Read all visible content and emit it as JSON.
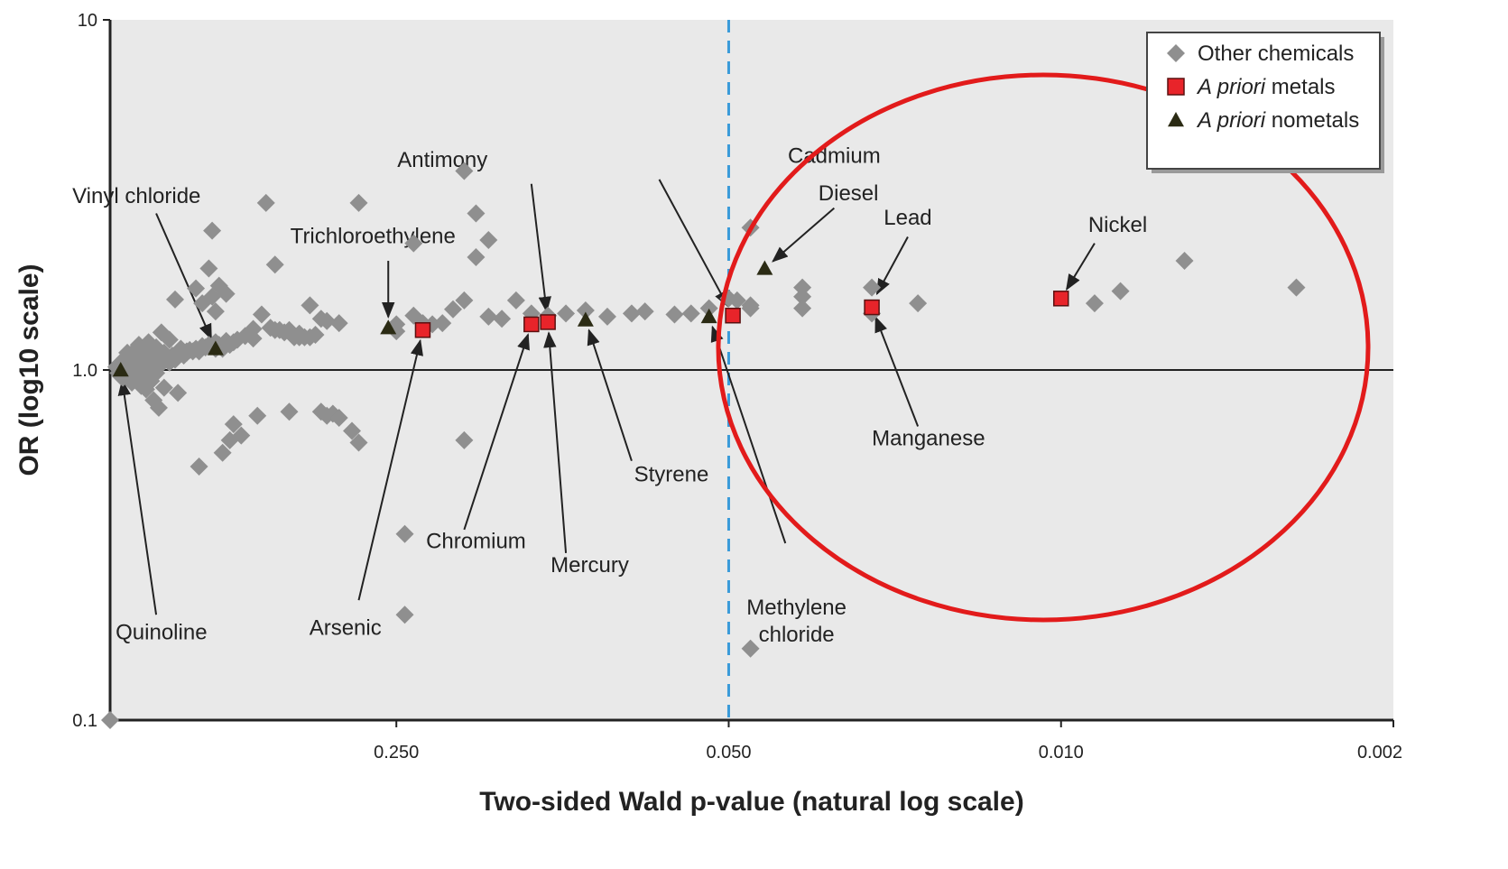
{
  "chart_data": {
    "type": "scatter",
    "title": "",
    "xlabel": "Two-sided Wald p-value (natural log scale)",
    "ylabel": "OR (log10 scale)",
    "x_scale": "reversed-natural-log",
    "y_scale": "log10",
    "xlim": [
      1.0,
      0.002
    ],
    "ylim": [
      0.1,
      10
    ],
    "x_ticks": [
      {
        "value": 0.25,
        "label": "0.250"
      },
      {
        "value": 0.05,
        "label": "0.050"
      },
      {
        "value": 0.01,
        "label": "0.010"
      },
      {
        "value": 0.002,
        "label": "0.002"
      }
    ],
    "y_ticks": [
      {
        "value": 0.1,
        "label": "0.1"
      },
      {
        "value": 1.0,
        "label": "1.0"
      },
      {
        "value": 10,
        "label": "10"
      }
    ],
    "reference_lines": {
      "y": 1.0,
      "x": 0.05
    },
    "colors": {
      "panel": "#e9e9e9",
      "other": "#8f8f8f",
      "metal": "#e8242a",
      "nonmetal": "#2b2b14",
      "significance_line": "#3a9bd9",
      "highlight_ellipse": "#e21b1b"
    },
    "legend": {
      "position": "top-right",
      "entries": [
        {
          "series": "other",
          "label_parts": [
            {
              "text": "Other chemicals",
              "italic": false
            }
          ]
        },
        {
          "series": "metal",
          "label_parts": [
            {
              "text": "A priori",
              "italic": true
            },
            {
              "text": " metals",
              "italic": false
            }
          ]
        },
        {
          "series": "nonmetal",
          "label_parts": [
            {
              "text": "A priori",
              "italic": true
            },
            {
              "text": " nometals",
              "italic": false
            }
          ]
        }
      ]
    },
    "series": [
      {
        "name": "Other chemicals",
        "key": "other",
        "marker": "diamond",
        "points": [
          [
            1.0,
            0.1
          ],
          [
            0.97,
            1.02
          ],
          [
            0.96,
            0.98
          ],
          [
            0.95,
            1.05
          ],
          [
            0.95,
            0.96
          ],
          [
            0.94,
            1.03
          ],
          [
            0.94,
            0.95
          ],
          [
            0.93,
            1.08
          ],
          [
            0.93,
            1.0
          ],
          [
            0.92,
            0.97
          ],
          [
            0.92,
            1.12
          ],
          [
            0.91,
            1.04
          ],
          [
            0.91,
            0.94
          ],
          [
            0.9,
            1.06
          ],
          [
            0.9,
            0.92
          ],
          [
            0.89,
            1.1
          ],
          [
            0.89,
            0.99
          ],
          [
            0.88,
            1.15
          ],
          [
            0.88,
            0.96
          ],
          [
            0.87,
            1.02
          ],
          [
            0.87,
            1.18
          ],
          [
            0.86,
            0.9
          ],
          [
            0.86,
            1.07
          ],
          [
            0.85,
            0.97
          ],
          [
            0.85,
            1.13
          ],
          [
            0.84,
            1.0
          ],
          [
            0.84,
            0.88
          ],
          [
            0.83,
            1.2
          ],
          [
            0.83,
            1.05
          ],
          [
            0.82,
            0.93
          ],
          [
            0.82,
            1.1
          ],
          [
            0.81,
            1.02
          ],
          [
            0.81,
            0.82
          ],
          [
            0.8,
            1.16
          ],
          [
            0.8,
            0.98
          ],
          [
            0.79,
            1.07
          ],
          [
            0.79,
            0.78
          ],
          [
            0.78,
            1.28
          ],
          [
            0.78,
            1.04
          ],
          [
            0.77,
            1.12
          ],
          [
            0.77,
            0.89
          ],
          [
            0.76,
            1.08
          ],
          [
            0.75,
            1.22
          ],
          [
            0.75,
            1.05
          ],
          [
            0.74,
            1.1
          ],
          [
            0.73,
            1.59
          ],
          [
            0.73,
            1.07
          ],
          [
            0.72,
            0.86
          ],
          [
            0.72,
            1.1
          ],
          [
            0.71,
            1.15
          ],
          [
            0.7,
            1.1
          ],
          [
            0.69,
            1.13
          ],
          [
            0.69,
            1.12
          ],
          [
            0.68,
            1.14
          ],
          [
            0.67,
            1.13
          ],
          [
            0.66,
            1.71
          ],
          [
            0.66,
            1.15
          ],
          [
            0.65,
            1.13
          ],
          [
            0.65,
            0.53
          ],
          [
            0.64,
            1.55
          ],
          [
            0.64,
            1.17
          ],
          [
            0.63,
            1.16
          ],
          [
            0.62,
            1.18
          ],
          [
            0.62,
            1.95
          ],
          [
            0.61,
            2.5
          ],
          [
            0.61,
            1.62
          ],
          [
            0.6,
            1.47
          ],
          [
            0.6,
            1.2
          ],
          [
            0.6,
            1.15
          ],
          [
            0.59,
            1.74
          ],
          [
            0.59,
            1.18
          ],
          [
            0.58,
            1.15
          ],
          [
            0.58,
            0.58
          ],
          [
            0.57,
            1.65
          ],
          [
            0.57,
            1.21
          ],
          [
            0.56,
            0.63
          ],
          [
            0.56,
            1.18
          ],
          [
            0.55,
            1.2
          ],
          [
            0.55,
            0.7
          ],
          [
            0.54,
            1.22
          ],
          [
            0.53,
            0.65
          ],
          [
            0.52,
            1.25
          ],
          [
            0.5,
            1.31
          ],
          [
            0.5,
            1.23
          ],
          [
            0.49,
            0.74
          ],
          [
            0.48,
            1.44
          ],
          [
            0.47,
            3.0
          ],
          [
            0.46,
            1.32
          ],
          [
            0.45,
            1.3
          ],
          [
            0.45,
            2.0
          ],
          [
            0.44,
            1.3
          ],
          [
            0.43,
            1.28
          ],
          [
            0.42,
            1.3
          ],
          [
            0.42,
            0.76
          ],
          [
            0.41,
            1.24
          ],
          [
            0.4,
            1.27
          ],
          [
            0.4,
            1.24
          ],
          [
            0.39,
            1.24
          ],
          [
            0.38,
            1.53
          ],
          [
            0.38,
            1.24
          ],
          [
            0.37,
            1.26
          ],
          [
            0.36,
            1.4
          ],
          [
            0.36,
            0.76
          ],
          [
            0.35,
            1.38
          ],
          [
            0.35,
            0.74
          ],
          [
            0.34,
            0.75
          ],
          [
            0.33,
            1.36
          ],
          [
            0.33,
            0.73
          ],
          [
            0.31,
            0.67
          ],
          [
            0.3,
            3.0
          ],
          [
            0.3,
            0.62
          ],
          [
            0.25,
            1.35
          ],
          [
            0.25,
            1.29
          ],
          [
            0.24,
            0.34
          ],
          [
            0.24,
            0.2
          ],
          [
            0.23,
            2.3
          ],
          [
            0.23,
            1.43
          ],
          [
            0.22,
            1.36
          ],
          [
            0.21,
            1.35
          ],
          [
            0.2,
            1.36
          ],
          [
            0.19,
            1.49
          ],
          [
            0.18,
            3.7
          ],
          [
            0.18,
            1.58
          ],
          [
            0.18,
            0.63
          ],
          [
            0.17,
            2.8
          ],
          [
            0.17,
            2.1
          ],
          [
            0.16,
            2.35
          ],
          [
            0.16,
            1.42
          ],
          [
            0.15,
            1.4
          ],
          [
            0.14,
            1.58
          ],
          [
            0.13,
            1.45
          ],
          [
            0.12,
            1.43
          ],
          [
            0.11,
            1.45
          ],
          [
            0.1,
            1.48
          ],
          [
            0.09,
            1.42
          ],
          [
            0.08,
            1.45
          ],
          [
            0.075,
            1.47
          ],
          [
            0.065,
            1.44
          ],
          [
            0.06,
            1.45
          ],
          [
            0.055,
            1.5
          ],
          [
            0.05,
            1.6
          ],
          [
            0.048,
            1.58
          ],
          [
            0.045,
            2.55
          ],
          [
            0.045,
            1.53
          ],
          [
            0.045,
            1.5
          ],
          [
            0.045,
            0.16
          ],
          [
            0.035,
            1.72
          ],
          [
            0.035,
            1.62
          ],
          [
            0.035,
            1.5
          ],
          [
            0.025,
            1.72
          ],
          [
            0.025,
            1.45
          ],
          [
            0.02,
            1.55
          ],
          [
            0.0085,
            1.55
          ],
          [
            0.0075,
            1.68
          ],
          [
            0.0055,
            2.05
          ],
          [
            0.0032,
            1.72
          ]
        ]
      },
      {
        "name": "A priori metals",
        "key": "metal",
        "marker": "square",
        "points": [
          [
            0.22,
            1.3
          ],
          [
            0.13,
            1.35
          ],
          [
            0.12,
            1.37
          ],
          [
            0.049,
            1.43
          ],
          [
            0.025,
            1.51
          ],
          [
            0.01,
            1.6
          ]
        ]
      },
      {
        "name": "A priori nometals",
        "key": "nonmetal",
        "marker": "triangle",
        "points": [
          [
            0.95,
            1.0
          ],
          [
            0.6,
            1.15
          ],
          [
            0.26,
            1.32
          ],
          [
            0.1,
            1.39
          ],
          [
            0.055,
            1.42
          ],
          [
            0.042,
            1.95
          ]
        ]
      }
    ],
    "annotations": [
      {
        "lines": [
          "Vinyl chloride"
        ],
        "tx": 0.88,
        "ty": 3.0,
        "point": [
          0.6,
          1.15
        ],
        "label_at": [
          0.8,
          2.8
        ]
      },
      {
        "lines": [
          "Trichloroethylene"
        ],
        "tx": 0.28,
        "ty": 2.3,
        "point": [
          0.26,
          1.32
        ],
        "label_at": [
          0.26,
          2.05
        ]
      },
      {
        "lines": [
          "Antimony"
        ],
        "tx": 0.2,
        "ty": 3.8,
        "point": [
          0.12,
          1.37
        ],
        "label_at": [
          0.13,
          3.4
        ]
      },
      {
        "lines": [
          "Cadmium"
        ],
        "tx": 0.03,
        "ty": 3.9,
        "point": [
          0.049,
          1.43
        ],
        "label_at": [
          0.07,
          3.5
        ]
      },
      {
        "lines": [
          "Diesel"
        ],
        "tx": 0.028,
        "ty": 3.05,
        "point": [
          0.042,
          1.95
        ],
        "label_at": [
          0.03,
          2.9
        ]
      },
      {
        "lines": [
          "Lead"
        ],
        "tx": 0.021,
        "ty": 2.6,
        "point": [
          0.025,
          1.55
        ],
        "label_at": [
          0.021,
          2.4
        ]
      },
      {
        "lines": [
          "Nickel"
        ],
        "tx": 0.0076,
        "ty": 2.48,
        "point": [
          0.01,
          1.6
        ],
        "label_at": [
          0.0085,
          2.3
        ]
      },
      {
        "lines": [
          "Quinoline"
        ],
        "tx": 0.78,
        "ty": 0.17,
        "point": [
          0.95,
          1.0
        ],
        "label_at": [
          0.8,
          0.2
        ]
      },
      {
        "lines": [
          "Arsenic"
        ],
        "tx": 0.32,
        "ty": 0.175,
        "point": [
          0.22,
          1.3
        ],
        "label_at": [
          0.3,
          0.22
        ]
      },
      {
        "lines": [
          "Chromium"
        ],
        "tx": 0.17,
        "ty": 0.31,
        "point": [
          0.13,
          1.35
        ],
        "label_at": [
          0.18,
          0.35
        ]
      },
      {
        "lines": [
          "Mercury"
        ],
        "tx": 0.098,
        "ty": 0.265,
        "point": [
          0.12,
          1.37
        ],
        "label_at": [
          0.11,
          0.3
        ]
      },
      {
        "lines": [
          "Styrene"
        ],
        "tx": 0.066,
        "ty": 0.48,
        "point": [
          0.1,
          1.39
        ],
        "label_at": [
          0.08,
          0.55
        ]
      },
      {
        "lines": [
          "Manganese"
        ],
        "tx": 0.019,
        "ty": 0.61,
        "point": [
          0.025,
          1.51
        ],
        "label_at": [
          0.02,
          0.69
        ]
      },
      {
        "lines": [
          "Methylene",
          "chloride"
        ],
        "tx": 0.036,
        "ty": 0.2,
        "point": [
          0.055,
          1.42
        ],
        "label_at": [
          0.038,
          0.32
        ]
      }
    ]
  }
}
